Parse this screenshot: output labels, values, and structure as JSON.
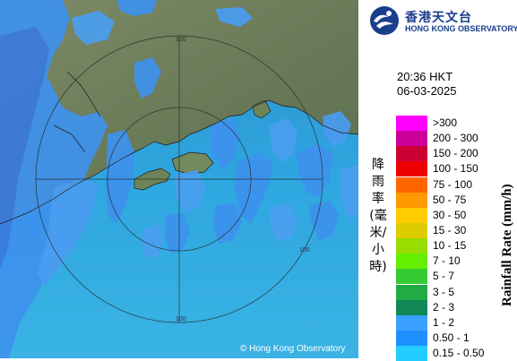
{
  "header": {
    "logo_icon": "hko-logo-icon",
    "logo_chinese": "香港天文台",
    "logo_english": "HONG KONG OBSERVATORY"
  },
  "timestamp": {
    "time": "20:36 HKT",
    "date": "06-03-2025"
  },
  "map": {
    "copyright": "© Hong Kong Observatory",
    "range_labels": [
      "100",
      "100",
      "100"
    ],
    "colors": {
      "sea": "#2a9ed9",
      "land": "#6f7f5e",
      "rain_light": "#33b7f0",
      "rain_mid": "#3e92ee",
      "rain_heavy": "#3a7ae0",
      "range_ring": "#222222"
    }
  },
  "legend": {
    "axis_label_cn": "降雨率(毫米/小時)",
    "axis_label_en": "Rainfall Rate (mm/h)",
    "items": [
      {
        "label": ">300",
        "color": "#ff00ff"
      },
      {
        "label": "200 - 300",
        "color": "#cc0099"
      },
      {
        "label": "150 - 200",
        "color": "#cc0033"
      },
      {
        "label": "100 - 150",
        "color": "#ee0000"
      },
      {
        "label": "75 - 100",
        "color": "#ff6600"
      },
      {
        "label": "50 - 75",
        "color": "#ff9900"
      },
      {
        "label": "30 - 50",
        "color": "#ffcc00"
      },
      {
        "label": "15 - 30",
        "color": "#ddcc00"
      },
      {
        "label": "10 - 15",
        "color": "#99dd00"
      },
      {
        "label": "7 - 10",
        "color": "#66ee00"
      },
      {
        "label": "5 - 7",
        "color": "#33cc33"
      },
      {
        "label": "3 - 5",
        "color": "#22aa44"
      },
      {
        "label": "2 - 3",
        "color": "#118855"
      },
      {
        "label": "1 - 2",
        "color": "#3aa0ff"
      },
      {
        "label": "0.50 - 1",
        "color": "#1e90ff"
      },
      {
        "label": "0.15 - 0.50",
        "color": "#22ccff"
      }
    ]
  }
}
